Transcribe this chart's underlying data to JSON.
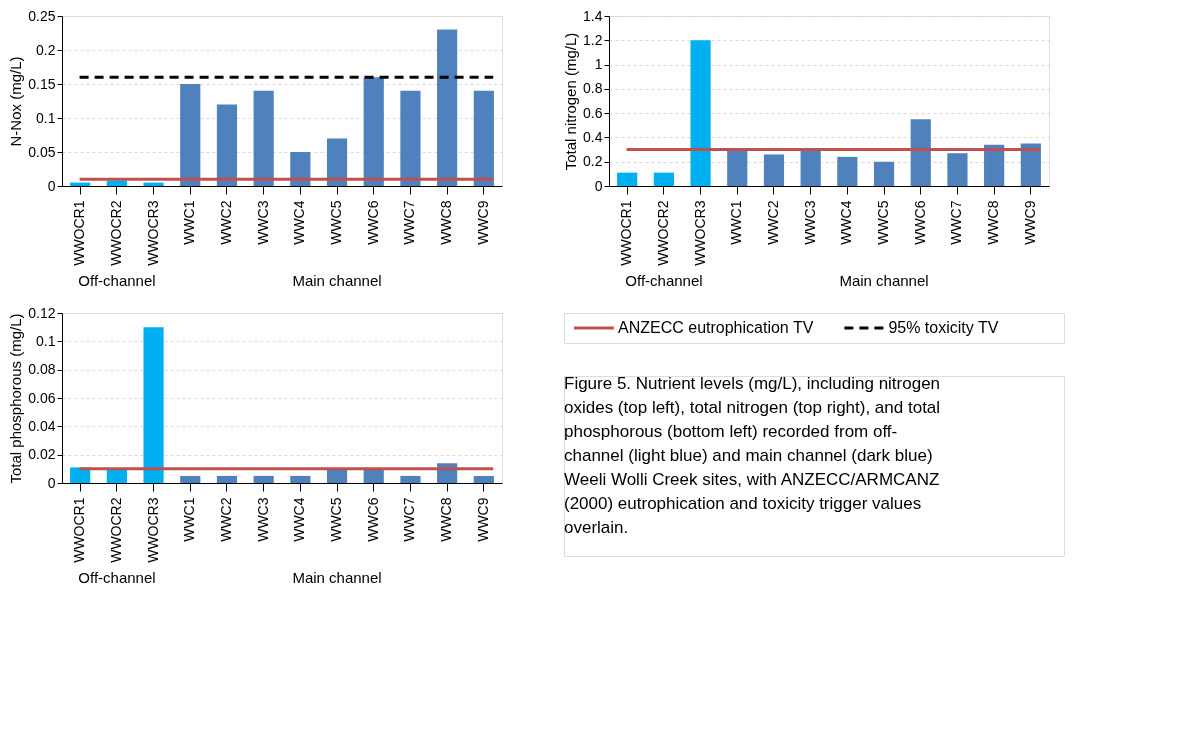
{
  "chart_data": [
    {
      "type": "bar",
      "ylabel": "N-Nox (mg/L)",
      "categories": [
        "WWOCR1",
        "WWOCR2",
        "WWOCR3",
        "WWC1",
        "WWC2",
        "WWC3",
        "WWC4",
        "WWC5",
        "WWC6",
        "WWC7",
        "WWC8",
        "WWC9"
      ],
      "values": [
        0.005,
        0.008,
        0.005,
        0.15,
        0.12,
        0.14,
        0.05,
        0.07,
        0.16,
        0.14,
        0.23,
        0.14
      ],
      "colors": [
        "#00b0f0",
        "#00b0f0",
        "#00b0f0",
        "#4f81bd",
        "#4f81bd",
        "#4f81bd",
        "#4f81bd",
        "#4f81bd",
        "#4f81bd",
        "#4f81bd",
        "#4f81bd",
        "#4f81bd"
      ],
      "ylim": [
        0,
        0.25
      ],
      "yticks": [
        0,
        0.05,
        0.1,
        0.15,
        0.2,
        0.25
      ],
      "grid": "y",
      "legend": "bottom right",
      "ref_lines": [
        {
          "axis": "y",
          "value": 0.01,
          "label": "ANZECC eutrophication TV",
          "color": "#c0504d",
          "line_style": "solid"
        },
        {
          "axis": "y",
          "value": 0.16,
          "label": "95% toxicity TV",
          "color": "#000000",
          "line_style": "dashed"
        }
      ],
      "annotations": [
        "Off-channel",
        "Main channel",
        "Figure 5.  Nutrient levels (mg/L), including nitrogen\noxides (top left), total nitrogen (top right), and total\nphosphorous (bottom left) recorded from off-\nchannel (light blue) and main channel (dark blue)\nWeeli Wolli Creek sites, with ANZECC/ARMCANZ\n(2000) eutrophication and toxicity trigger values\noverlain."
      ]
    },
    {
      "type": "bar",
      "ylabel": "Total nitrogen (mg/L)",
      "categories": [
        "WWOCR1",
        "WWOCR2",
        "WWOCR3",
        "WWC1",
        "WWC2",
        "WWC3",
        "WWC4",
        "WWC5",
        "WWC6",
        "WWC7",
        "WWC8",
        "WWC9"
      ],
      "values": [
        0.11,
        0.11,
        1.2,
        0.3,
        0.26,
        0.3,
        0.24,
        0.2,
        0.55,
        0.27,
        0.34,
        0.35
      ],
      "colors": [
        "#00b0f0",
        "#00b0f0",
        "#00b0f0",
        "#4f81bd",
        "#4f81bd",
        "#4f81bd",
        "#4f81bd",
        "#4f81bd",
        "#4f81bd",
        "#4f81bd",
        "#4f81bd",
        "#4f81bd"
      ],
      "ylim": [
        0,
        1.4
      ],
      "yticks": [
        0,
        0.2,
        0.4,
        0.6,
        0.8,
        1,
        1.2,
        1.4
      ],
      "grid": "y",
      "ref_lines": [
        {
          "axis": "y",
          "value": 0.3,
          "color": "#c0504d",
          "line_style": "solid"
        }
      ],
      "annotations": [
        "Off-channel",
        "Main channel"
      ]
    },
    {
      "type": "bar",
      "ylabel": "Total phosphorous (mg/L)",
      "categories": [
        "WWOCR1",
        "WWOCR2",
        "WWOCR3",
        "WWC1",
        "WWC2",
        "WWC3",
        "WWC4",
        "WWC5",
        "WWC6",
        "WWC7",
        "WWC8",
        "WWC9"
      ],
      "values": [
        0.011,
        0.01,
        0.11,
        0.005,
        0.005,
        0.005,
        0.005,
        0.01,
        0.01,
        0.005,
        0.014,
        0.005
      ],
      "colors": [
        "#00b0f0",
        "#00b0f0",
        "#00b0f0",
        "#4f81bd",
        "#4f81bd",
        "#4f81bd",
        "#4f81bd",
        "#4f81bd",
        "#4f81bd",
        "#4f81bd",
        "#4f81bd",
        "#4f81bd"
      ],
      "ylim": [
        0,
        0.12
      ],
      "yticks": [
        0,
        0.02,
        0.04,
        0.06,
        0.08,
        0.1,
        0.12
      ],
      "grid": "y",
      "ref_lines": [
        {
          "axis": "y",
          "value": 0.01,
          "color": "#c0504d",
          "line_style": "solid"
        }
      ],
      "annotations": [
        "Off-channel",
        "Main channel"
      ]
    }
  ]
}
